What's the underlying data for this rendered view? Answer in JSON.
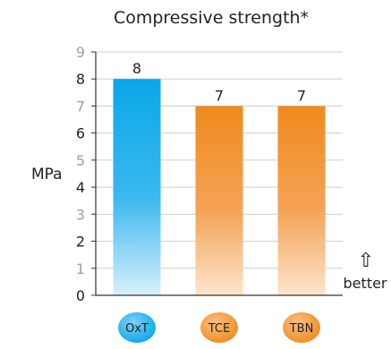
{
  "chart_data": {
    "type": "bar",
    "title": "Compressive strength*",
    "ylabel": "MPa",
    "xlabel": "",
    "ylim": [
      0,
      9
    ],
    "yticks": [
      0,
      1,
      2,
      3,
      4,
      5,
      6,
      7,
      8,
      9
    ],
    "grid": true,
    "categories": [
      "OxT",
      "TCE",
      "TBN"
    ],
    "values": [
      8,
      7,
      7
    ],
    "value_labels": [
      "8",
      "7",
      "7"
    ],
    "annotation": "better",
    "annotation_icon": "up-arrow-icon",
    "colors": {
      "OxT": "#0aa7e8",
      "TCE": "#f08a1e",
      "TBN": "#f08a1e",
      "grid": "#cfcfcf",
      "axis": "#333333",
      "major_tick": "#222222",
      "minor_tick": "#a0a0a0"
    }
  }
}
